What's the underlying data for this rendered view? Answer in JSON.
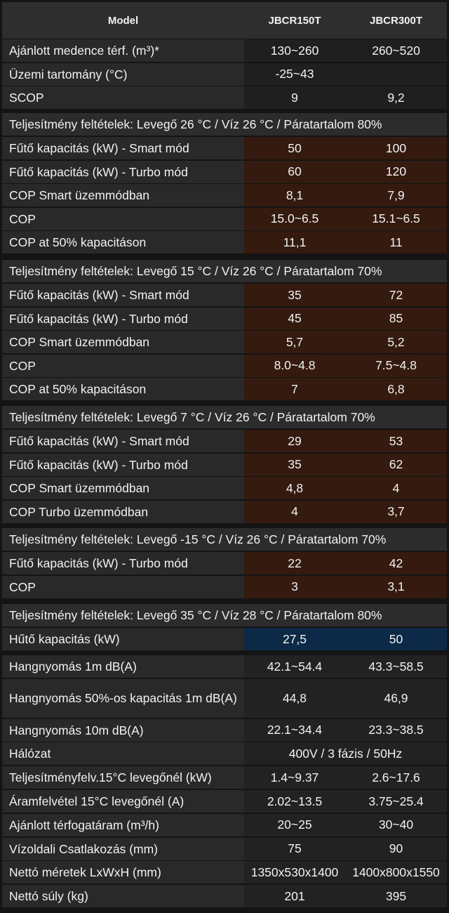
{
  "header": {
    "model": "Model",
    "col1": "JBCR150T",
    "col2": "JBCR300T"
  },
  "top_rows": [
    {
      "label": "Ajánlott medence térf. (m³)*",
      "v1": "130~260",
      "v2": "260~520"
    },
    {
      "label": "Üzemi tartomány (°C)",
      "v1": "-25~43",
      "v2": ""
    },
    {
      "label": "SCOP",
      "v1": "9",
      "v2": "9,2"
    }
  ],
  "sections": [
    {
      "title": "Teljesítmény feltételek: Levegő 26 °C / Víz 26 °C / Páratartalom 80%",
      "rows": [
        {
          "label": "Fűtő kapacitás (kW) - Smart mód",
          "v1": "50",
          "v2": "100"
        },
        {
          "label": "Fűtő kapacitás (kW) - Turbo mód",
          "v1": "60",
          "v2": "120"
        },
        {
          "label": "COP Smart üzemmódban",
          "v1": "8,1",
          "v2": "7,9"
        },
        {
          "label": "COP",
          "v1": "15.0~6.5",
          "v2": "15.1~6.5"
        },
        {
          "label": "COP at 50% kapacitáson",
          "v1": "11,1",
          "v2": "11"
        }
      ]
    },
    {
      "title": "Teljesítmény feltételek: Levegő 15 °C / Víz 26 °C / Páratartalom 70%",
      "rows": [
        {
          "label": "Fűtő kapacitás (kW) - Smart mód",
          "v1": "35",
          "v2": "72"
        },
        {
          "label": "Fűtő kapacitás (kW) - Turbo mód",
          "v1": "45",
          "v2": "85"
        },
        {
          "label": "COP Smart üzemmódban",
          "v1": "5,7",
          "v2": "5,2"
        },
        {
          "label": "COP",
          "v1": "8.0~4.8",
          "v2": "7.5~4.8"
        },
        {
          "label": "COP at 50% kapacitáson",
          "v1": "7",
          "v2": "6,8"
        }
      ]
    },
    {
      "title": "Teljesítmény feltételek: Levegő 7 °C / Víz 26 °C / Páratartalom 70%",
      "rows": [
        {
          "label": "Fűtő kapacitás (kW) - Smart mód",
          "v1": "29",
          "v2": "53"
        },
        {
          "label": "Fűtő kapacitás (kW) - Turbo mód",
          "v1": "35",
          "v2": "62"
        },
        {
          "label": "COP Smart üzemmódban",
          "v1": "4,8",
          "v2": "4"
        },
        {
          "label": "COP Turbo üzemmódban",
          "v1": "4",
          "v2": "3,7"
        }
      ]
    },
    {
      "title": "Teljesítmény feltételek: Levegő -15 °C / Víz 26 °C / Páratartalom 70%",
      "rows": [
        {
          "label": "Fűtő kapacitás (kW) - Turbo mód",
          "v1": "22",
          "v2": "42"
        },
        {
          "label": "COP",
          "v1": "3",
          "v2": "3,1"
        }
      ]
    },
    {
      "title": "Teljesítmény feltételek: Levegő 35 °C / Víz 28 °C / Páratartalom 80%",
      "rows": [
        {
          "label": "Hűtő kapacitás (kW)",
          "v1": "27,5",
          "v2": "50"
        }
      ]
    }
  ],
  "bottom_rows": [
    {
      "label": "Hangnyomás 1m dB(A)",
      "v1": "42.1~54.4",
      "v2": "43.3~58.5"
    },
    {
      "label": "Hangnyomás 50%-os kapacitás 1m dB(A)",
      "v1": "44,8",
      "v2": "46,9"
    },
    {
      "label": "Hangnyomás 10m dB(A)",
      "v1": "22.1~34.4",
      "v2": "23.3~38.5"
    },
    {
      "label": "Hálózat",
      "span": "400V / 3 fázis / 50Hz"
    },
    {
      "label": "Teljesítményfelv.15°C levegőnél (kW)",
      "v1": "1.4~9.37",
      "v2": "2.6~17.6"
    },
    {
      "label": "Áramfelvétel 15°C levegőnél (A)",
      "v1": "2.02~13.5",
      "v2": "3.75~25.4"
    },
    {
      "label": "Ajánlott térfogatáram (m³/h)",
      "v1": "20~25",
      "v2": "30~40"
    },
    {
      "label": "Vízoldali Csatlakozás (mm)",
      "v1": "75",
      "v2": "90"
    },
    {
      "label": "Nettó méretek LxWxH (mm)",
      "v1": "1350x530x1400",
      "v2": "1400x800x1550"
    },
    {
      "label": "Nettó súly (kg)",
      "v1": "201",
      "v2": "395"
    }
  ],
  "colors": {
    "section_fill": "#341a0f",
    "cooling_fill": "#0c2a47",
    "background": "#141414"
  }
}
